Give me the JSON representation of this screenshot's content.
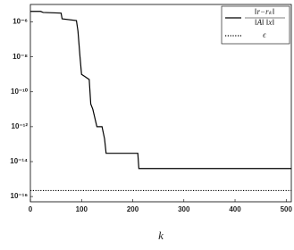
{
  "chart_data": {
    "type": "line",
    "x_label": "k",
    "log_y": true,
    "xlim": [
      0,
      510
    ],
    "ylim": [
      5e-17,
      1e-05
    ],
    "xticks": [
      0,
      100,
      200,
      300,
      400,
      500
    ],
    "yticks": [
      {
        "value": 1e-06,
        "label": "10⁻⁶"
      },
      {
        "value": 1e-08,
        "label": "10⁻⁸"
      },
      {
        "value": 1e-10,
        "label": "10⁻¹⁰"
      },
      {
        "value": 1e-12,
        "label": "10⁻¹²"
      },
      {
        "value": 1e-14,
        "label": "10⁻¹⁴"
      },
      {
        "value": 1e-16,
        "label": "10⁻¹⁶"
      }
    ],
    "legend": "upper right",
    "series": [
      {
        "name": "‖r−rₖ‖ / ‖A‖ ‖x‖",
        "color": "#000000",
        "dash": "solid",
        "x": [
          0,
          20,
          25,
          60,
          62,
          90,
          93,
          97,
          100,
          105,
          115,
          118,
          122,
          130,
          140,
          145,
          148,
          210,
          212,
          510
        ],
        "values": [
          4e-06,
          4e-06,
          3.5e-06,
          3.2e-06,
          1.5e-06,
          1.2e-06,
          3e-07,
          1e-08,
          1e-09,
          8e-10,
          5e-10,
          2e-11,
          1e-11,
          1e-12,
          1e-12,
          2e-13,
          3e-14,
          3e-14,
          4e-15,
          4e-15
        ]
      },
      {
        "name": "ϵ",
        "color": "#000000",
        "dash": "dotted",
        "x": [
          0,
          510
        ],
        "values": [
          2.2e-16,
          2.2e-16
        ]
      }
    ]
  }
}
